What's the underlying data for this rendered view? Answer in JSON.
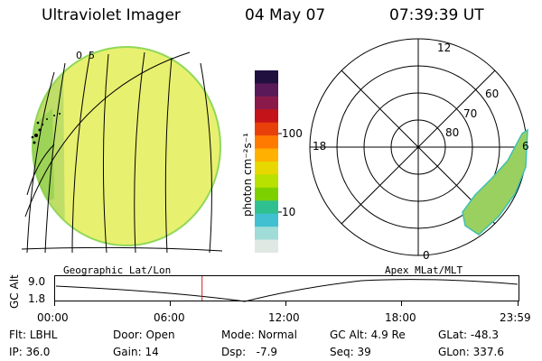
{
  "header": {
    "instrument": "Ultraviolet Imager",
    "date": "04 May 07",
    "time": "07:39:39 UT"
  },
  "geo_panel": {
    "label": "Geographic Lat/Lon",
    "grid_labels": [
      "0",
      "5"
    ]
  },
  "colorbar": {
    "unit_label": "photon cm⁻²s⁻¹",
    "tick_labels": [
      "100",
      "10"
    ],
    "colors": [
      "#201040",
      "#5a1a5a",
      "#8a1a4a",
      "#c4141a",
      "#e8400a",
      "#ff7a00",
      "#ffb000",
      "#e6d800",
      "#b8e000",
      "#7cd000",
      "#30c090",
      "#40c0d0",
      "#a0dcd8",
      "#e0e8e4"
    ]
  },
  "polar_panel": {
    "label": "Apex MLat/MLT",
    "mlt_labels": [
      "12",
      "18",
      "6",
      "0"
    ],
    "mlat_labels": [
      "60",
      "70",
      "80"
    ]
  },
  "timeline": {
    "y_label": "GC Alt",
    "y_ticks": [
      "9.0",
      "1.8"
    ],
    "x_ticks": [
      "00:00",
      "06:00",
      "12:00",
      "18:00",
      "23:59"
    ],
    "current_time_hours": 7.66
  },
  "info": {
    "filter": {
      "label": "Flt:",
      "value": "LBHL"
    },
    "ip": {
      "label": "IP:",
      "value": "36.0"
    },
    "door": {
      "label": "Door:",
      "value": "Open"
    },
    "gain": {
      "label": "Gain:",
      "value": "14"
    },
    "mode": {
      "label": "Mode:",
      "value": "Normal"
    },
    "dsp": {
      "label": "Dsp:",
      "value": "-7.9"
    },
    "gc_alt": {
      "label": "GC Alt:",
      "value": "4.9 Re"
    },
    "seq": {
      "label": "Seq:",
      "value": "39"
    },
    "glat": {
      "label": "GLat:",
      "value": "-48.3"
    },
    "glon": {
      "label": "GLon:",
      "value": "337.6"
    }
  },
  "styles": {
    "image_fill": "#e8f070",
    "image_edge": "#90d858",
    "aurora_fill": "#9ad060",
    "cursor_color": "#d02020"
  }
}
